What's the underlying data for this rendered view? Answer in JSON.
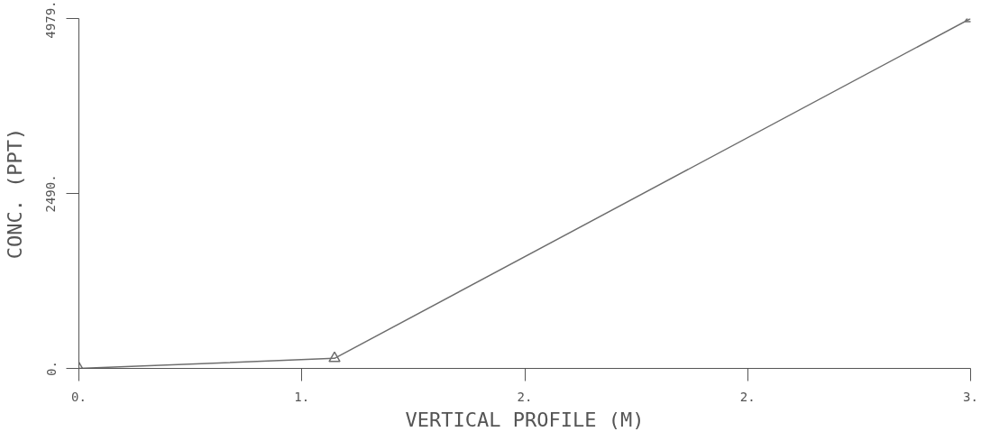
{
  "chart_data": {
    "type": "line",
    "xlabel": "VERTICAL PROFILE (M)",
    "ylabel": "CONC. (PPT)",
    "x": [
      0,
      0.86,
      3
    ],
    "series": [
      {
        "color": "#6e6e6e",
        "values": [
          0,
          143,
          4979
        ]
      }
    ],
    "xlim": [
      0,
      3
    ],
    "ylim": [
      0,
      4979
    ],
    "xticks": [
      {
        "value": 0,
        "label": "0."
      },
      {
        "value": 0.75,
        "label": "1."
      },
      {
        "value": 1.5,
        "label": "2."
      },
      {
        "value": 2.25,
        "label": "2."
      },
      {
        "value": 3,
        "label": "3."
      }
    ],
    "yticks": [
      {
        "value": 0,
        "label": "0."
      },
      {
        "value": 2490,
        "label": "2490."
      },
      {
        "value": 4979,
        "label": "4979."
      }
    ],
    "grid": false,
    "marker": "triangle",
    "line_style": "solid"
  }
}
